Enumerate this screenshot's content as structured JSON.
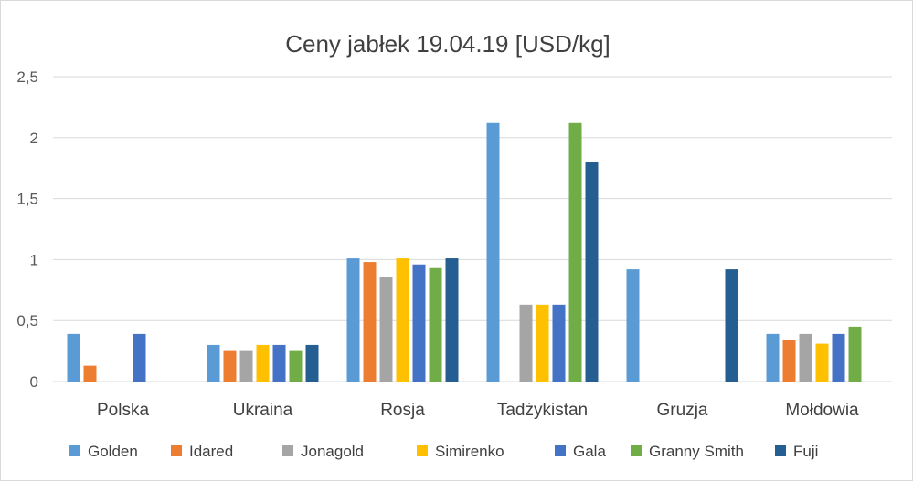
{
  "chart_data": {
    "type": "bar",
    "title": "Ceny jabłek 19.04.19 [USD/kg]",
    "xlabel": "",
    "ylabel": "",
    "categories": [
      "Polska",
      "Ukraina",
      "Rosja",
      "Tadżykistan",
      "Gruzja",
      "Mołdowia"
    ],
    "ylim": [
      0,
      2.5
    ],
    "yticks": [
      0,
      0.5,
      1,
      1.5,
      2,
      2.5
    ],
    "ytick_labels": [
      "0",
      "0,5",
      "1",
      "1,5",
      "2",
      "2,5"
    ],
    "grid": true,
    "legend_position": "bottom",
    "series": [
      {
        "name": "Golden",
        "color": "#5b9bd5",
        "values": [
          0.39,
          0.3,
          1.01,
          2.12,
          0.92,
          0.39
        ]
      },
      {
        "name": "Idared",
        "color": "#ed7d31",
        "values": [
          0.13,
          0.25,
          0.98,
          null,
          null,
          0.34
        ]
      },
      {
        "name": "Jonagold",
        "color": "#a5a5a5",
        "values": [
          null,
          0.25,
          0.86,
          0.63,
          null,
          0.39
        ]
      },
      {
        "name": "Simirenko",
        "color": "#ffc000",
        "values": [
          null,
          0.3,
          1.01,
          0.63,
          null,
          0.31
        ]
      },
      {
        "name": "Gala",
        "color": "#4472c4",
        "values": [
          0.39,
          0.3,
          0.96,
          0.63,
          null,
          0.39
        ]
      },
      {
        "name": "Granny Smith",
        "color": "#70ad47",
        "values": [
          null,
          0.25,
          0.93,
          2.12,
          null,
          0.45
        ]
      },
      {
        "name": "Fuji",
        "color": "#255e91",
        "values": [
          null,
          0.3,
          1.01,
          1.8,
          0.92,
          null
        ]
      }
    ]
  }
}
